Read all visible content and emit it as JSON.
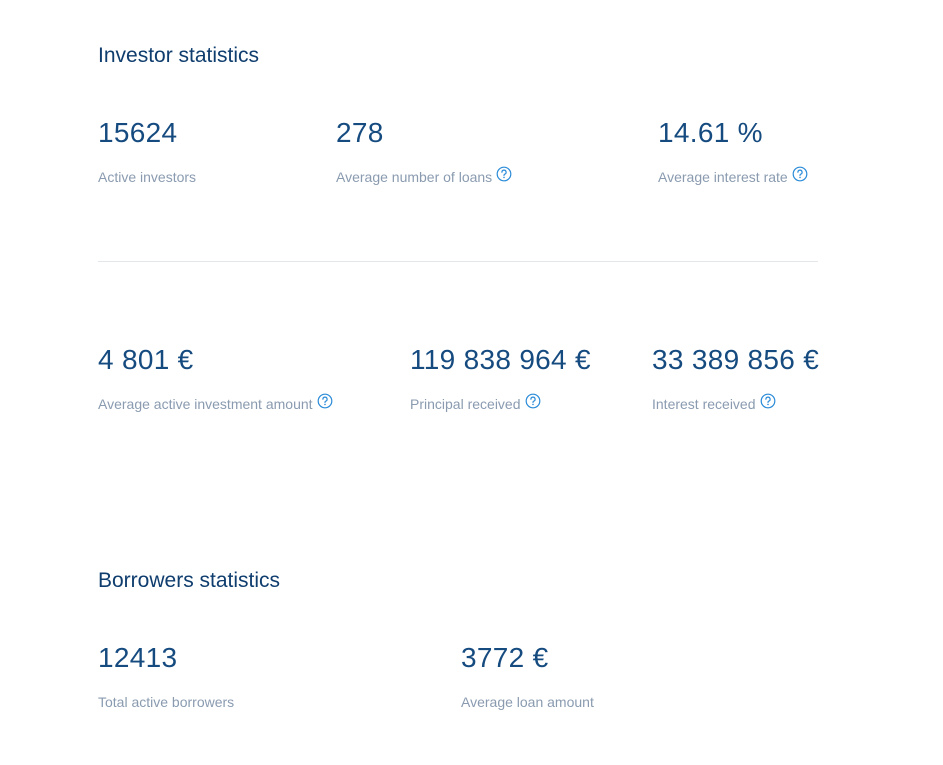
{
  "sections": [
    {
      "title": "Investor statistics",
      "rows": [
        [
          {
            "value": "15624",
            "label": "Active investors",
            "help": false
          },
          {
            "value": "278",
            "label": "Average number of loans",
            "help": true
          },
          {
            "value": "14.61 %",
            "label": "Average interest rate",
            "help": true
          }
        ],
        [
          {
            "value": "4 801 €",
            "label": "Average active investment amount",
            "help": true
          },
          {
            "value": "119 838 964 €",
            "label": "Principal received",
            "help": true
          },
          {
            "value": "33 389 856 €",
            "label": "Interest received",
            "help": true
          }
        ]
      ]
    },
    {
      "title": "Borrowers statistics",
      "rows": [
        [
          {
            "value": "12413",
            "label": "Total active borrowers",
            "help": false
          },
          {
            "value": "3772 €",
            "label": "Average loan amount",
            "help": false
          }
        ]
      ]
    }
  ]
}
